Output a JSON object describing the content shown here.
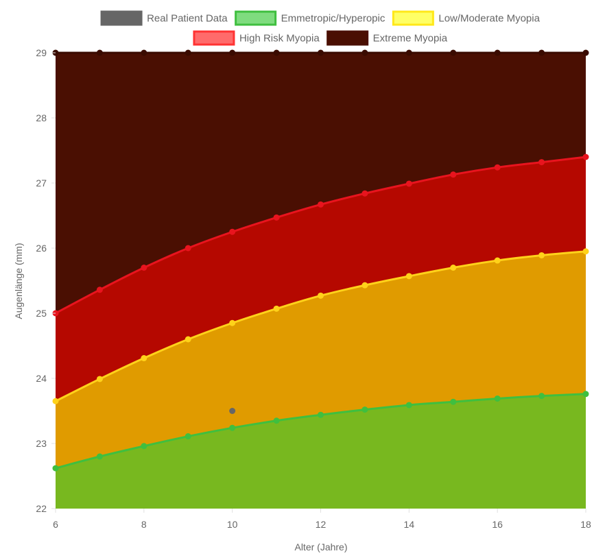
{
  "chart_data": {
    "type": "area",
    "xlabel": "Alter (Jahre)",
    "ylabel": "Augenlänge (mm)",
    "xlim": [
      6,
      18
    ],
    "ylim": [
      22,
      29
    ],
    "x_ticks": [
      6,
      8,
      10,
      12,
      14,
      16,
      18
    ],
    "y_ticks": [
      22,
      23,
      24,
      25,
      26,
      27,
      28,
      29
    ],
    "x": [
      6,
      7,
      8,
      9,
      10,
      11,
      12,
      13,
      14,
      15,
      16,
      17,
      18
    ],
    "legend_position": "top",
    "series": [
      {
        "name": "Real Patient Data",
        "kind": "scatter",
        "points": [
          {
            "x": 10,
            "y": 23.5
          }
        ],
        "color": "#666666",
        "legend_fill": "#666666",
        "legend_border": "#666666"
      },
      {
        "name": "Emmetropic/Hyperopic",
        "kind": "band",
        "values": [
          22.62,
          22.8,
          22.96,
          23.11,
          23.24,
          23.35,
          23.44,
          23.52,
          23.59,
          23.64,
          23.69,
          23.73,
          23.76
        ],
        "fill": "#78b81f",
        "line": "#3fbf3f",
        "legend_fill": "#7fdc7f",
        "legend_border": "#3fbf3f"
      },
      {
        "name": "Low/Moderate Myopia",
        "kind": "band",
        "values": [
          23.65,
          23.99,
          24.31,
          24.6,
          24.85,
          25.07,
          25.27,
          25.43,
          25.57,
          25.7,
          25.81,
          25.89,
          25.95
        ],
        "fill": "#e09b00",
        "line": "#ffd21a",
        "legend_fill": "#ffff66",
        "legend_border": "#ffe81a"
      },
      {
        "name": "High Risk Myopia",
        "kind": "band",
        "values": [
          25.0,
          25.36,
          25.7,
          26.0,
          26.25,
          26.47,
          26.67,
          26.84,
          26.99,
          27.13,
          27.24,
          27.32,
          27.4
        ],
        "fill": "#b50800",
        "line": "#e8141e",
        "legend_fill": "#ff6b6b",
        "legend_border": "#ff3333"
      },
      {
        "name": "Extreme Myopia",
        "kind": "band",
        "values": [
          29,
          29,
          29,
          29,
          29,
          29,
          29,
          29,
          29,
          29,
          29,
          29,
          29
        ],
        "fill": "#4a0f02",
        "line": "#3a0b00",
        "legend_fill": "#4a0f02",
        "legend_border": "#4a0f02"
      }
    ]
  }
}
